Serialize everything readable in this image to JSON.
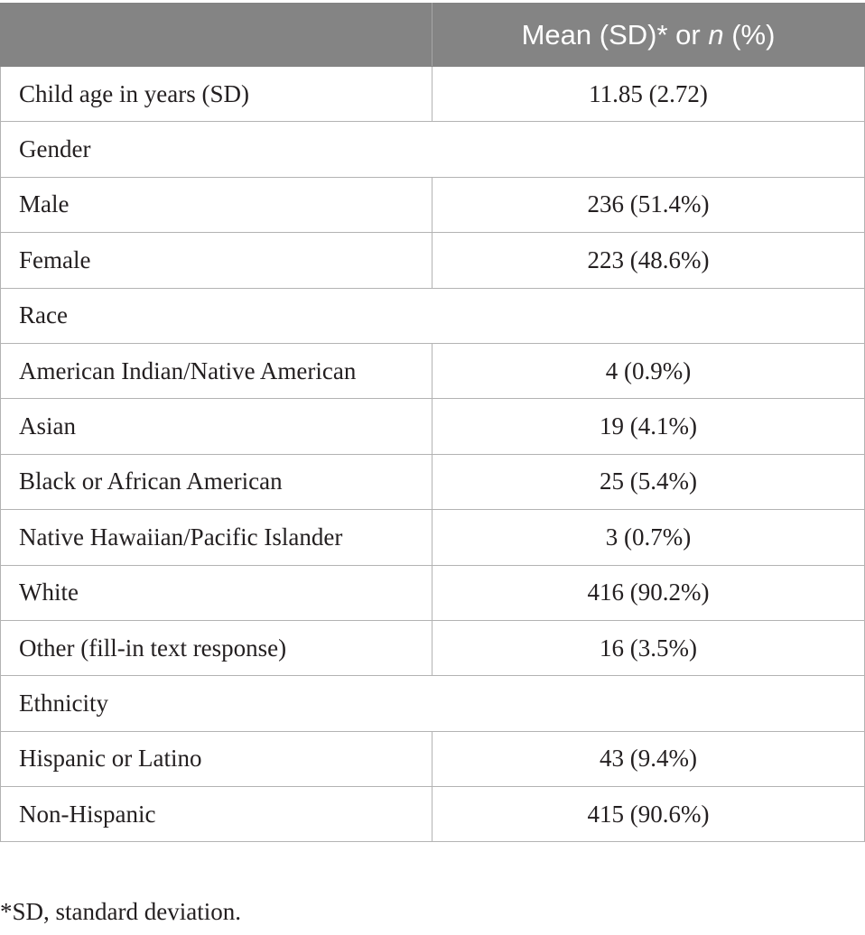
{
  "header": {
    "col1": "",
    "col2_a": "Mean (SD)* or ",
    "col2_n": "n",
    "col2_b": " (%)"
  },
  "rows": [
    {
      "type": "data",
      "label": "Child age in years (SD)",
      "value": "11.85 (2.72)"
    },
    {
      "type": "section",
      "label": "Gender"
    },
    {
      "type": "data",
      "label": "Male",
      "value": "236 (51.4%)"
    },
    {
      "type": "data",
      "label": "Female",
      "value": "223 (48.6%)"
    },
    {
      "type": "section",
      "label": "Race"
    },
    {
      "type": "data",
      "label": "American Indian/Native American",
      "value": "4 (0.9%)"
    },
    {
      "type": "data",
      "label": "Asian",
      "value": "19 (4.1%)"
    },
    {
      "type": "data",
      "label": "Black or African American",
      "value": "25 (5.4%)"
    },
    {
      "type": "data",
      "label": "Native Hawaiian/Pacific Islander",
      "value": "3 (0.7%)"
    },
    {
      "type": "data",
      "label": "White",
      "value": "416 (90.2%)"
    },
    {
      "type": "data",
      "label": "Other (fill-in text response)",
      "value": "16 (3.5%)"
    },
    {
      "type": "section",
      "label": "Ethnicity"
    },
    {
      "type": "data",
      "label": "Hispanic or Latino",
      "value": "43 (9.4%)"
    },
    {
      "type": "data",
      "label": "Non-Hispanic",
      "value": "415 (90.6%)"
    }
  ],
  "footnote": "*SD, standard deviation."
}
